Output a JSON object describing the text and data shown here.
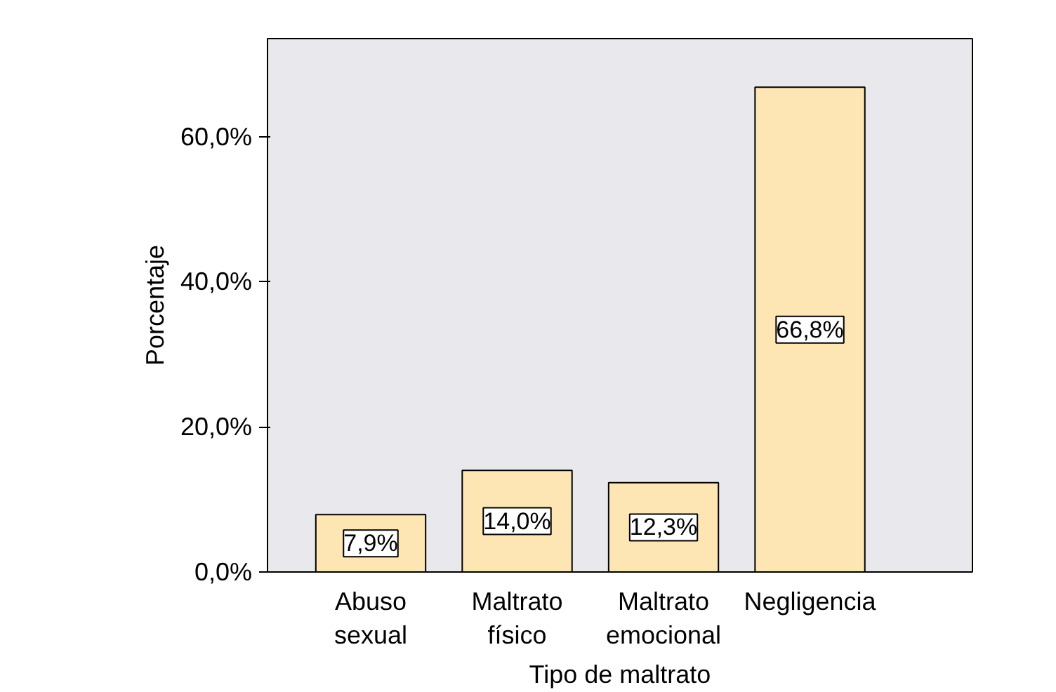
{
  "chart_data": {
    "type": "bar",
    "xlabel": "Tipo de maltrato",
    "ylabel": "Porcentaje",
    "categories": [
      "Abuso sexual",
      "Maltrato físico",
      "Maltrato emocional",
      "Negligencia"
    ],
    "values": [
      7.9,
      14.0,
      12.3,
      66.8
    ],
    "value_labels": [
      "7,9%",
      "14,0%",
      "12,3%",
      "66,8%"
    ],
    "color": "#fde6b4",
    "ylim": [
      0,
      73.5
    ],
    "yticks": [
      {
        "value": 0,
        "label": "0,0%"
      },
      {
        "value": 20,
        "label": "20,0%"
      },
      {
        "value": 40,
        "label": "40,0%"
      },
      {
        "value": 60,
        "label": "60,0%"
      }
    ],
    "grid": false
  }
}
